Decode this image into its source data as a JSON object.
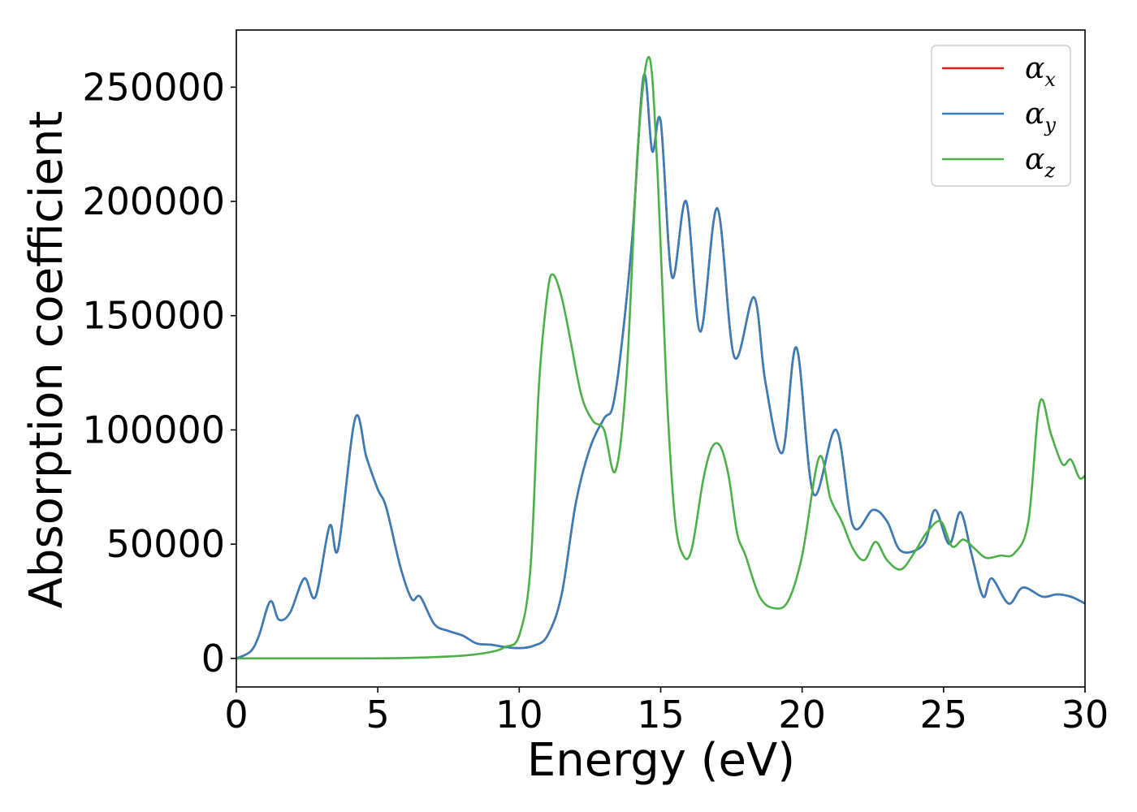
{
  "chart_data": {
    "type": "line",
    "xlabel": "Energy (eV)",
    "ylabel": "Absorption coefficient",
    "xlim": [
      0,
      30
    ],
    "ylim": [
      -12500,
      275000
    ],
    "xticks": [
      0,
      5,
      10,
      15,
      20,
      25,
      30
    ],
    "xtick_labels": [
      "0",
      "5",
      "10",
      "15",
      "20",
      "25",
      "30"
    ],
    "yticks": [
      0,
      50000,
      100000,
      150000,
      200000,
      250000
    ],
    "ytick_labels": [
      "0",
      "50000",
      "100000",
      "150000",
      "200000",
      "250000"
    ],
    "grid": false,
    "legend_position": "top-right",
    "series": [
      {
        "name": "α",
        "subscript": "x",
        "color": "#e41a1c",
        "x": [
          0,
          0.5,
          0.8,
          1.2,
          1.5,
          1.9,
          2.4,
          2.8,
          3.3,
          3.6,
          4.2,
          4.6,
          5.0,
          5.3,
          5.8,
          6.2,
          6.5,
          7.0,
          7.5,
          8.0,
          8.5,
          9.0,
          9.5,
          10.0,
          10.5,
          11.0,
          11.5,
          12.0,
          12.5,
          13.0,
          13.3,
          13.6,
          14.0,
          14.4,
          14.7,
          15.0,
          15.4,
          15.9,
          16.4,
          17.0,
          17.6,
          18.3,
          18.7,
          19.3,
          19.8,
          20.4,
          21.2,
          21.8,
          22.5,
          23.0,
          23.5,
          24.3,
          24.7,
          25.2,
          25.6,
          26.0,
          26.4,
          26.7,
          27.3,
          27.8,
          28.5,
          29.0,
          29.5,
          30.0
        ],
        "y": [
          0,
          3000,
          10000,
          25000,
          17000,
          20000,
          35000,
          27000,
          58000,
          48000,
          105000,
          88000,
          74000,
          66000,
          40000,
          26000,
          27000,
          15000,
          12000,
          10000,
          6500,
          6000,
          5000,
          4500,
          5500,
          10000,
          28000,
          68000,
          92000,
          105000,
          110000,
          135000,
          185000,
          255000,
          222000,
          235000,
          167000,
          200000,
          143000,
          197000,
          132000,
          158000,
          121000,
          90000,
          136000,
          72000,
          100000,
          58000,
          65000,
          60000,
          47000,
          50000,
          65000,
          50000,
          64000,
          45000,
          27000,
          35000,
          24000,
          31000,
          27000,
          28000,
          27000,
          24000
        ]
      },
      {
        "name": "α",
        "subscript": "y",
        "color": "#377eb8",
        "x": [
          0,
          0.5,
          0.8,
          1.2,
          1.5,
          1.9,
          2.4,
          2.8,
          3.3,
          3.6,
          4.2,
          4.6,
          5.0,
          5.3,
          5.8,
          6.2,
          6.5,
          7.0,
          7.5,
          8.0,
          8.5,
          9.0,
          9.5,
          10.0,
          10.5,
          11.0,
          11.5,
          12.0,
          12.5,
          13.0,
          13.3,
          13.6,
          14.0,
          14.4,
          14.7,
          15.0,
          15.4,
          15.9,
          16.4,
          17.0,
          17.6,
          18.3,
          18.7,
          19.3,
          19.8,
          20.4,
          21.2,
          21.8,
          22.5,
          23.0,
          23.5,
          24.3,
          24.7,
          25.2,
          25.6,
          26.0,
          26.4,
          26.7,
          27.3,
          27.8,
          28.5,
          29.0,
          29.5,
          30.0
        ],
        "y": [
          0,
          3000,
          10000,
          25000,
          17000,
          20000,
          35000,
          27000,
          58000,
          48000,
          105000,
          88000,
          74000,
          66000,
          40000,
          26000,
          27000,
          15000,
          12000,
          10000,
          6500,
          6000,
          5000,
          4500,
          5500,
          10000,
          28000,
          68000,
          92000,
          105000,
          110000,
          135000,
          185000,
          255000,
          222000,
          235000,
          167000,
          200000,
          143000,
          197000,
          132000,
          158000,
          121000,
          90000,
          136000,
          72000,
          100000,
          58000,
          65000,
          60000,
          47000,
          50000,
          65000,
          50000,
          64000,
          45000,
          27000,
          35000,
          24000,
          31000,
          27000,
          28000,
          27000,
          24000
        ]
      },
      {
        "name": "α",
        "subscript": "z",
        "color": "#4daf4a",
        "x": [
          0,
          2,
          4,
          6,
          8,
          9,
          9.5,
          10.0,
          10.4,
          10.7,
          11.0,
          11.2,
          11.5,
          11.8,
          12.2,
          12.6,
          13.0,
          13.4,
          13.8,
          14.2,
          14.6,
          14.9,
          15.2,
          15.5,
          15.8,
          16.1,
          16.5,
          16.8,
          17.1,
          17.4,
          17.7,
          18.0,
          18.5,
          19.0,
          19.5,
          20.0,
          20.6,
          21.0,
          21.4,
          21.8,
          22.2,
          22.6,
          23.0,
          23.5,
          24.0,
          24.4,
          24.9,
          25.3,
          25.7,
          26.1,
          26.5,
          27.0,
          27.5,
          28.0,
          28.4,
          28.8,
          29.2,
          29.5,
          29.8,
          30.0
        ],
        "y": [
          0,
          0,
          0,
          200,
          1200,
          2800,
          5000,
          10000,
          40000,
          120000,
          160000,
          168000,
          158000,
          140000,
          115000,
          104000,
          100000,
          82000,
          125000,
          225000,
          263000,
          210000,
          120000,
          62000,
          45000,
          48000,
          78000,
          92000,
          93000,
          80000,
          55000,
          45000,
          27000,
          22000,
          25000,
          45000,
          88000,
          70000,
          60000,
          48000,
          43000,
          51000,
          43000,
          39000,
          47000,
          55000,
          60000,
          49000,
          52000,
          48000,
          44000,
          45000,
          46000,
          60000,
          112000,
          98000,
          85000,
          87000,
          79000,
          80000
        ]
      }
    ]
  }
}
